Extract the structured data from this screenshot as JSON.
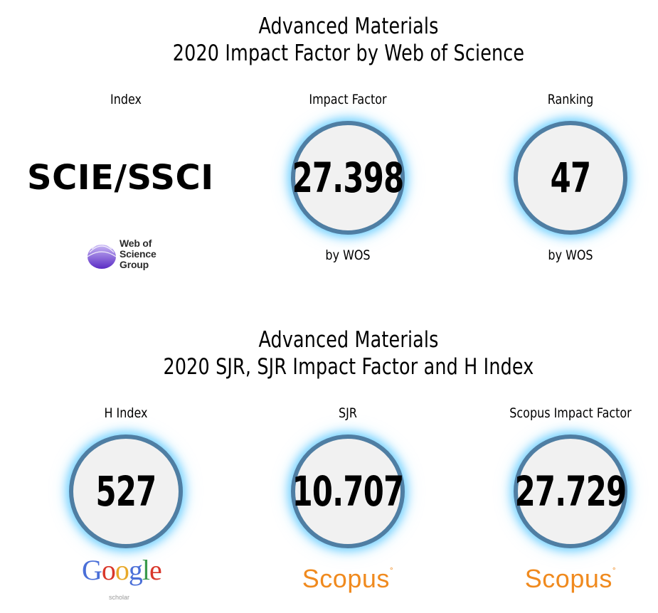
{
  "wos_section": {
    "title_line1": "Advanced Materials",
    "title_line2": "2020 Impact Factor by Web of Science",
    "columns": {
      "index": {
        "label": "Index",
        "value": "SCIE/SSCI",
        "logo_text": [
          "Web of",
          "Science",
          "Group"
        ]
      },
      "impact_factor": {
        "label": "Impact Factor",
        "value": "27.398",
        "sub": "by WOS"
      },
      "ranking": {
        "label": "Ranking",
        "value": "47",
        "sub": "by WOS"
      }
    }
  },
  "sjr_section": {
    "title_line1": "Advanced Materials",
    "title_line2": "2020 SJR, SJR Impact Factor and H Index",
    "columns": {
      "h_index": {
        "label": "H Index",
        "value": "527",
        "logo_text": "Google",
        "logo_sub": "scholar"
      },
      "sjr": {
        "label": "SJR",
        "value": "10.707",
        "logo_text": "Scopus"
      },
      "scopus_if": {
        "label": "Scopus Impact Factor",
        "value": "27.729",
        "logo_text": "Scopus"
      }
    }
  },
  "colors": {
    "circle_border": "#4f7ea3",
    "circle_fill": "#f1f1f1",
    "glow": "#5ac8ff",
    "scopus_orange": "#f08a1e",
    "wos_purple": "#6a3fd0"
  }
}
